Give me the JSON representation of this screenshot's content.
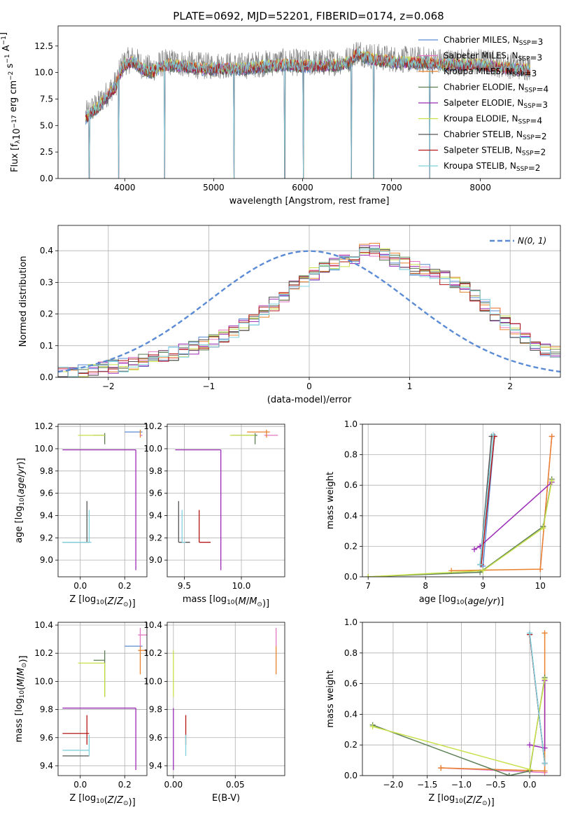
{
  "figure": {
    "title": "PLATE=0692, MJD=52201, FIBERID=0174, z=0.068"
  },
  "series_styles": [
    {
      "name": "Chabrier MILES",
      "nssp": "3",
      "color": "#5b8bd4"
    },
    {
      "name": "Salpeter MILES",
      "nssp": "3",
      "color": "#e377c2"
    },
    {
      "name": "Kroupa MILES",
      "nssp": "3",
      "color": "#e8822c"
    },
    {
      "name": "Chabrier ELODIE",
      "nssp": "4",
      "color": "#5a7d52"
    },
    {
      "name": "Salpeter ELODIE",
      "nssp": "3",
      "color": "#9a2bb5"
    },
    {
      "name": "Kroupa ELODIE",
      "nssp": "4",
      "color": "#c7e04a"
    },
    {
      "name": "Chabrier STELIB",
      "nssp": "2",
      "color": "#555555"
    },
    {
      "name": "Salpeter STELIB",
      "nssp": "2",
      "color": "#b51818"
    },
    {
      "name": "Kroupa STELIB",
      "nssp": "2",
      "color": "#7fd3df"
    }
  ],
  "chart_data": [
    {
      "id": "spectrum",
      "type": "line",
      "xlabel": "wavelength [Angstrom, rest frame]",
      "ylabel": "Flux [f_λ10^-17 erg cm^-2 s^-1 A^-1]",
      "xlim": [
        3250,
        8900
      ],
      "ylim": [
        0,
        14.4
      ],
      "xticks": [
        4000,
        5000,
        6000,
        7000,
        8000
      ],
      "yticks": [
        0.0,
        2.5,
        5.0,
        7.5,
        10.0,
        12.5
      ],
      "legend_position": "right",
      "data_line": {
        "color": "#808080"
      },
      "data_outline": [
        [
          3560,
          6.0
        ],
        [
          3620,
          6.5
        ],
        [
          3700,
          7.0
        ],
        [
          3800,
          8.0
        ],
        [
          3900,
          9.0
        ],
        [
          3960,
          10.5
        ],
        [
          4000,
          11.0
        ],
        [
          4100,
          11.3
        ],
        [
          4200,
          10.6
        ],
        [
          4300,
          10.3
        ],
        [
          4400,
          10.8
        ],
        [
          4500,
          11.0
        ],
        [
          4700,
          10.8
        ],
        [
          4900,
          10.6
        ],
        [
          5100,
          10.7
        ],
        [
          5300,
          10.6
        ],
        [
          5500,
          10.8
        ],
        [
          5800,
          11.0
        ],
        [
          6000,
          10.9
        ],
        [
          6200,
          10.9
        ],
        [
          6400,
          11.0
        ],
        [
          6550,
          11.3
        ],
        [
          6600,
          12.0
        ],
        [
          6800,
          11.5
        ],
        [
          7000,
          11.3
        ],
        [
          7200,
          11.2
        ],
        [
          7400,
          11.2
        ],
        [
          7600,
          11.0
        ],
        [
          7800,
          11.0
        ],
        [
          8000,
          11.0
        ],
        [
          8200,
          10.8
        ],
        [
          8400,
          10.6
        ],
        [
          8560,
          10.5
        ]
      ],
      "absorption_dips": [
        [
          3600,
          0.0
        ],
        [
          3930,
          0.0
        ],
        [
          4450,
          0.0
        ],
        [
          5230,
          0.0
        ],
        [
          5800,
          0.0
        ],
        [
          6010,
          0.0
        ],
        [
          6550,
          0.0
        ],
        [
          6800,
          0.0
        ],
        [
          7430,
          0.0
        ]
      ]
    },
    {
      "id": "residuals",
      "type": "histogram",
      "xlabel": "(data-model)/error",
      "ylabel": "Normed distribution",
      "xlim": [
        -2.5,
        2.5
      ],
      "ylim": [
        0,
        0.48
      ],
      "xticks": [
        -2,
        -1,
        0,
        1,
        2
      ],
      "yticks": [
        0.0,
        0.1,
        0.2,
        0.3,
        0.4
      ],
      "grid": true,
      "legend": "N(0,1)",
      "legend_position": "top-right",
      "bin_width": 0.1,
      "hist_shape": [
        [
          -2.5,
          0.01
        ],
        [
          -2.2,
          0.02
        ],
        [
          -2.0,
          0.03
        ],
        [
          -1.8,
          0.04
        ],
        [
          -1.6,
          0.06
        ],
        [
          -1.4,
          0.07
        ],
        [
          -1.2,
          0.09
        ],
        [
          -1.0,
          0.11
        ],
        [
          -0.8,
          0.14
        ],
        [
          -0.6,
          0.17
        ],
        [
          -0.4,
          0.22
        ],
        [
          -0.2,
          0.27
        ],
        [
          0.0,
          0.32
        ],
        [
          0.2,
          0.35
        ],
        [
          0.4,
          0.37
        ],
        [
          0.6,
          0.41
        ],
        [
          0.8,
          0.38
        ],
        [
          1.0,
          0.35
        ],
        [
          1.2,
          0.33
        ],
        [
          1.4,
          0.31
        ],
        [
          1.6,
          0.28
        ],
        [
          1.8,
          0.21
        ],
        [
          2.0,
          0.16
        ],
        [
          2.2,
          0.11
        ],
        [
          2.5,
          0.07
        ]
      ]
    },
    {
      "id": "z-age",
      "type": "scatter",
      "xlabel": "Z [log10(Z/Z⊙)]",
      "ylabel": "age [log10(age/yr)]",
      "xlim": [
        -0.1,
        0.3
      ],
      "ylim": [
        8.85,
        10.22
      ],
      "xticks": [
        0.0,
        0.2
      ],
      "yticks": [
        9.0,
        9.2,
        9.4,
        9.6,
        9.8,
        10.0,
        10.2
      ],
      "grid": true,
      "segments": [
        {
          "s": 0,
          "x1": 0.2,
          "y1": 10.15,
          "x2": 0.28,
          "y2": 10.15
        },
        {
          "s": 2,
          "x1": 0.27,
          "y1": 10.1,
          "x2": 0.27,
          "y2": 10.17
        },
        {
          "s": 1,
          "x1": 0.27,
          "y1": 10.12,
          "x2": 0.28,
          "y2": 10.12
        },
        {
          "s": 3,
          "x1": 0.06,
          "y1": 10.12,
          "x2": 0.11,
          "y2": 10.12
        },
        {
          "s": 3,
          "x1": 0.11,
          "y1": 10.04,
          "x2": 0.11,
          "y2": 10.14
        },
        {
          "s": 5,
          "x1": -0.01,
          "y1": 10.12,
          "x2": 0.11,
          "y2": 10.12
        },
        {
          "s": 4,
          "x1": -0.08,
          "y1": 9.99,
          "x2": 0.25,
          "y2": 9.99
        },
        {
          "s": 4,
          "x1": 0.25,
          "y1": 8.91,
          "x2": 0.25,
          "y2": 9.99
        },
        {
          "s": 6,
          "x1": -0.08,
          "y1": 9.16,
          "x2": 0.04,
          "y2": 9.16
        },
        {
          "s": 6,
          "x1": 0.03,
          "y1": 9.16,
          "x2": 0.03,
          "y2": 9.53
        },
        {
          "s": 7,
          "x1": 0.02,
          "y1": 9.16,
          "x2": 0.04,
          "y2": 9.16
        },
        {
          "s": 8,
          "x1": -0.08,
          "y1": 9.16,
          "x2": 0.05,
          "y2": 9.16
        },
        {
          "s": 8,
          "x1": 0.04,
          "y1": 9.16,
          "x2": 0.04,
          "y2": 9.45
        }
      ]
    },
    {
      "id": "mass-age",
      "type": "scatter",
      "xlabel": "mass [log10(M/M⊙)]",
      "ylabel": "",
      "xlim": [
        9.35,
        10.38
      ],
      "ylim": [
        8.85,
        10.22
      ],
      "xticks": [
        9.5,
        10.0
      ],
      "yticks": [
        9.0,
        9.2,
        9.4,
        9.6,
        9.8,
        10.0,
        10.2
      ],
      "grid": true,
      "segments": [
        {
          "s": 2,
          "x1": 10.05,
          "y1": 10.15,
          "x2": 10.25,
          "y2": 10.15
        },
        {
          "s": 1,
          "x1": 10.2,
          "y1": 10.12,
          "x2": 10.32,
          "y2": 10.12
        },
        {
          "s": 2,
          "x1": 10.22,
          "y1": 10.1,
          "x2": 10.22,
          "y2": 10.17
        },
        {
          "s": 3,
          "x1": 9.92,
          "y1": 10.12,
          "x2": 10.14,
          "y2": 10.12
        },
        {
          "s": 3,
          "x1": 10.12,
          "y1": 10.04,
          "x2": 10.12,
          "y2": 10.14
        },
        {
          "s": 5,
          "x1": 9.9,
          "y1": 10.12,
          "x2": 10.12,
          "y2": 10.12
        },
        {
          "s": 4,
          "x1": 9.42,
          "y1": 9.99,
          "x2": 9.82,
          "y2": 9.99
        },
        {
          "s": 4,
          "x1": 9.82,
          "y1": 8.91,
          "x2": 9.82,
          "y2": 9.99
        },
        {
          "s": 6,
          "x1": 9.45,
          "y1": 9.16,
          "x2": 9.55,
          "y2": 9.16
        },
        {
          "s": 6,
          "x1": 9.45,
          "y1": 9.16,
          "x2": 9.45,
          "y2": 9.53
        },
        {
          "s": 7,
          "x1": 9.63,
          "y1": 9.16,
          "x2": 9.73,
          "y2": 9.16
        },
        {
          "s": 7,
          "x1": 9.63,
          "y1": 9.16,
          "x2": 9.63,
          "y2": 9.45
        },
        {
          "s": 8,
          "x1": 9.48,
          "y1": 9.16,
          "x2": 9.51,
          "y2": 9.16
        },
        {
          "s": 8,
          "x1": 9.48,
          "y1": 9.16,
          "x2": 9.48,
          "y2": 9.45
        }
      ]
    },
    {
      "id": "age-weight",
      "type": "line",
      "xlabel": "age [log10(age/yr)]",
      "ylabel": "mass weight",
      "xlim": [
        6.9,
        10.35
      ],
      "ylim": [
        0.0,
        1.0
      ],
      "xticks": [
        7,
        8,
        9,
        10
      ],
      "yticks": [
        0.0,
        0.2,
        0.4,
        0.6,
        0.8,
        1.0
      ],
      "grid": true,
      "series": [
        {
          "s": 0,
          "x": [
            9.0,
            9.2
          ],
          "y": [
            0.07,
            0.92
          ]
        },
        {
          "s": 1,
          "x": [
            10.0,
            10.2
          ],
          "y": [
            0.05,
            0.92
          ]
        },
        {
          "s": 2,
          "x": [
            8.45,
            10.0,
            10.2
          ],
          "y": [
            0.04,
            0.05,
            0.92
          ]
        },
        {
          "s": 3,
          "x": [
            7.0,
            8.95,
            10.05,
            10.2
          ],
          "y": [
            0.0,
            0.03,
            0.33,
            0.64
          ]
        },
        {
          "s": 4,
          "x": [
            8.85,
            8.95,
            10.2
          ],
          "y": [
            0.18,
            0.2,
            0.62
          ]
        },
        {
          "s": 5,
          "x": [
            7.0,
            9.0,
            10.05,
            10.2
          ],
          "y": [
            0.0,
            0.04,
            0.32,
            0.63
          ]
        },
        {
          "s": 6,
          "x": [
            8.95,
            9.15
          ],
          "y": [
            0.08,
            0.92
          ]
        },
        {
          "s": 7,
          "x": [
            8.97,
            9.2
          ],
          "y": [
            0.08,
            0.92
          ]
        },
        {
          "s": 8,
          "x": [
            8.95,
            9.18
          ],
          "y": [
            0.08,
            0.93
          ]
        }
      ]
    },
    {
      "id": "z-mass",
      "type": "scatter",
      "xlabel": "Z [log10(Z/Z⊙)]",
      "ylabel": "mass [log10(M/M⊙)]",
      "xlim": [
        -0.1,
        0.3
      ],
      "ylim": [
        9.33,
        10.42
      ],
      "xticks": [
        0.0,
        0.2
      ],
      "yticks": [
        9.4,
        9.6,
        9.8,
        10.0,
        10.2,
        10.4
      ],
      "grid": true,
      "segments": [
        {
          "s": 0,
          "x1": 0.2,
          "y1": 10.25,
          "x2": 0.28,
          "y2": 10.25
        },
        {
          "s": 1,
          "x1": 0.27,
          "y1": 10.25,
          "x2": 0.27,
          "y2": 10.38
        },
        {
          "s": 1,
          "x1": 0.26,
          "y1": 10.33,
          "x2": 0.3,
          "y2": 10.33
        },
        {
          "s": 2,
          "x1": 0.27,
          "y1": 10.05,
          "x2": 0.27,
          "y2": 10.25
        },
        {
          "s": 2,
          "x1": 0.26,
          "y1": 10.22,
          "x2": 0.3,
          "y2": 10.22
        },
        {
          "s": 3,
          "x1": 0.06,
          "y1": 10.15,
          "x2": 0.11,
          "y2": 10.15
        },
        {
          "s": 3,
          "x1": 0.11,
          "y1": 9.89,
          "x2": 0.11,
          "y2": 10.22
        },
        {
          "s": 5,
          "x1": -0.01,
          "y1": 10.13,
          "x2": 0.11,
          "y2": 10.13
        },
        {
          "s": 5,
          "x1": 0.11,
          "y1": 9.89,
          "x2": 0.11,
          "y2": 10.13
        },
        {
          "s": 4,
          "x1": -0.08,
          "y1": 9.81,
          "x2": 0.25,
          "y2": 9.81
        },
        {
          "s": 4,
          "x1": 0.25,
          "y1": 9.37,
          "x2": 0.25,
          "y2": 9.81
        },
        {
          "s": 6,
          "x1": -0.08,
          "y1": 9.47,
          "x2": 0.04,
          "y2": 9.47
        },
        {
          "s": 7,
          "x1": -0.08,
          "y1": 9.63,
          "x2": 0.04,
          "y2": 9.63
        },
        {
          "s": 7,
          "x1": 0.03,
          "y1": 9.55,
          "x2": 0.03,
          "y2": 9.76
        },
        {
          "s": 8,
          "x1": -0.08,
          "y1": 9.51,
          "x2": 0.04,
          "y2": 9.51
        },
        {
          "s": 8,
          "x1": 0.04,
          "y1": 9.47,
          "x2": 0.04,
          "y2": 9.62
        }
      ]
    },
    {
      "id": "ebv-mass",
      "type": "scatter",
      "xlabel": "E(B-V)",
      "ylabel": "",
      "xlim": [
        -0.005,
        0.09
      ],
      "ylim": [
        9.33,
        10.42
      ],
      "xticks": [
        0.0,
        0.05
      ],
      "yticks": [
        9.4,
        9.6,
        9.8,
        10.0,
        10.2,
        10.4
      ],
      "grid": true,
      "segments": [
        {
          "s": 1,
          "x1": 0.083,
          "y1": 10.25,
          "x2": 0.083,
          "y2": 10.38
        },
        {
          "s": 2,
          "x1": 0.083,
          "y1": 10.05,
          "x2": 0.083,
          "y2": 10.25
        },
        {
          "s": 5,
          "x1": 0.0,
          "y1": 9.89,
          "x2": 0.0,
          "y2": 10.22
        },
        {
          "s": 4,
          "x1": 0.0,
          "y1": 9.37,
          "x2": 0.0,
          "y2": 9.81
        },
        {
          "s": 7,
          "x1": 0.01,
          "y1": 9.55,
          "x2": 0.01,
          "y2": 9.76
        },
        {
          "s": 8,
          "x1": 0.01,
          "y1": 9.47,
          "x2": 0.01,
          "y2": 9.62
        }
      ]
    },
    {
      "id": "z-weight",
      "type": "line",
      "xlabel": "Z [log10(Z/Z⊙)]",
      "ylabel": "mass weight",
      "xlim": [
        -2.45,
        0.45
      ],
      "ylim": [
        0.0,
        1.0
      ],
      "xticks": [
        -2.0,
        -1.5,
        -1.0,
        -0.5,
        0.0
      ],
      "yticks": [
        0.0,
        0.2,
        0.4,
        0.6,
        0.8,
        1.0
      ],
      "grid": true,
      "series": [
        {
          "s": 0,
          "x": [
            0.0,
            0.22
          ],
          "y": [
            0.92,
            0.08
          ]
        },
        {
          "s": 1,
          "x": [
            -1.3,
            0.22
          ],
          "y": [
            0.05,
            0.02
          ]
        },
        {
          "s": 2,
          "x": [
            -1.3,
            0.22,
            0.22
          ],
          "y": [
            0.05,
            0.03,
            0.93
          ]
        },
        {
          "s": 3,
          "x": [
            -2.3,
            -0.3,
            0.0,
            0.22
          ],
          "y": [
            0.33,
            0.0,
            0.03,
            0.64
          ]
        },
        {
          "s": 4,
          "x": [
            0.0,
            0.22,
            0.22
          ],
          "y": [
            0.2,
            0.18,
            0.62
          ]
        },
        {
          "s": 5,
          "x": [
            -2.3,
            0.0,
            0.22
          ],
          "y": [
            0.32,
            0.04,
            0.63
          ]
        },
        {
          "s": 6,
          "x": [
            0.0,
            0.22
          ],
          "y": [
            0.92,
            0.08
          ]
        },
        {
          "s": 7,
          "x": [
            0.0,
            0.22
          ],
          "y": [
            0.92,
            0.08
          ]
        },
        {
          "s": 8,
          "x": [
            0.0,
            0.22
          ],
          "y": [
            0.93,
            0.08
          ]
        }
      ]
    }
  ]
}
